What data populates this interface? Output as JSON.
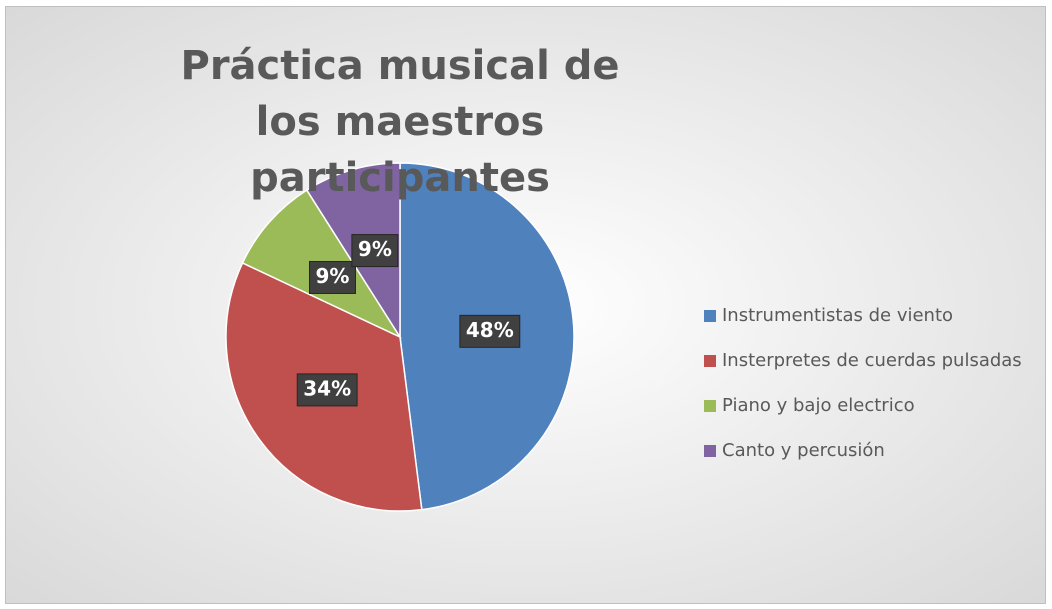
{
  "chart_data": {
    "type": "pie",
    "title": "Práctica musical de los maestros participantes",
    "categories": [
      "Instrumentistas de viento",
      "Insterpretes de cuerdas pulsadas",
      "Piano y bajo electrico",
      "Canto y percusión"
    ],
    "values": [
      48,
      34,
      9,
      9
    ],
    "value_labels": [
      "48%",
      "34%",
      "9%",
      "9%"
    ],
    "colors": [
      "#4f81bd",
      "#c0504d",
      "#9bbb59",
      "#8064a2"
    ],
    "legend": "right"
  }
}
